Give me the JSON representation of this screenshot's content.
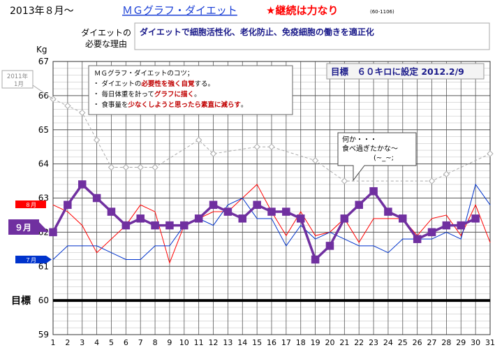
{
  "header": {
    "date_title": "2013年８月〜",
    "app_title": "ＭＧグラフ・ダイエット",
    "motto": "★継続は力なり",
    "code": "(60-1106)"
  },
  "reason": {
    "label_line1": "ダイエットの",
    "label_line2": "必要な理由",
    "text": "ダイエットで細胞活性化、老化防止、免疫細胞の働きを適正化"
  },
  "tips": {
    "title": "ＭＧグラフ・ダイエットのコツ；",
    "items": [
      {
        "pre": "・ ダイエットの",
        "em": "必要性を強く自覚",
        "post": "する。"
      },
      {
        "pre": "・ 毎日体重を計って",
        "em": "グラフに描く",
        "post": "。"
      },
      {
        "pre": "・ 食事量を",
        "em": "少なくしようと思ったら素直に減らす",
        "post": "。"
      }
    ]
  },
  "goal_banner": "目標　６０キロに設定 2012.2/9",
  "callout": {
    "line1": "何か・・・",
    "line2": "食べ過ぎたかな〜",
    "line3": "(~_~;"
  },
  "colors": {
    "sep_2013": "#7030a0",
    "aug_2012": "#ff0000",
    "jul_2013": "#0033cc",
    "nov_2011": "#aaaaaa",
    "goal": "#000000"
  },
  "chart_data": {
    "type": "line",
    "ylabel": "Kg",
    "ylim": [
      59,
      67
    ],
    "yticks": [
      59,
      60,
      61,
      62,
      63,
      64,
      65,
      66,
      67
    ],
    "x": [
      1,
      2,
      3,
      4,
      5,
      6,
      7,
      8,
      9,
      10,
      11,
      12,
      13,
      14,
      15,
      16,
      17,
      18,
      19,
      20,
      21,
      22,
      23,
      24,
      25,
      26,
      27,
      28,
      29,
      30,
      31
    ],
    "grid": true,
    "goal_label": "目標",
    "goal_value": 60,
    "series": [
      {
        "key": "nov_2011",
        "name": "2011年\n1月",
        "label_line1": "2011年",
        "label_line2": "1月",
        "values": [
          65.9,
          65.7,
          65.5,
          64.7,
          63.9,
          63.9,
          63.9,
          63.9,
          null,
          null,
          64.7,
          64.3,
          null,
          null,
          64.5,
          64.5,
          null,
          null,
          64.1,
          null,
          63.5,
          null,
          null,
          null,
          null,
          null,
          63.5,
          63.7,
          null,
          null,
          64.3
        ]
      },
      {
        "key": "aug_2012",
        "name": "８月",
        "values": [
          62.8,
          62.6,
          62.2,
          61.4,
          61.8,
          62.2,
          62.8,
          62.6,
          61.1,
          62.2,
          62.4,
          62.6,
          62.6,
          63.0,
          63.4,
          62.6,
          61.9,
          62.6,
          61.9,
          62.0,
          62.4,
          61.7,
          62.4,
          62.4,
          62.4,
          61.9,
          62.4,
          62.5,
          61.9,
          62.8,
          61.7
        ]
      },
      {
        "key": "jul_2013",
        "name": "７月",
        "values": [
          61.2,
          61.6,
          61.6,
          61.6,
          61.4,
          61.2,
          61.2,
          61.6,
          61.6,
          62.2,
          62.4,
          62.2,
          62.8,
          63.0,
          62.4,
          62.4,
          61.6,
          62.2,
          61.8,
          62.0,
          61.8,
          61.6,
          61.6,
          61.4,
          61.8,
          61.8,
          61.8,
          62.0,
          61.8,
          63.4,
          62.8
        ]
      },
      {
        "key": "sep_2013",
        "name": "９月",
        "values": [
          62.0,
          62.8,
          63.4,
          63.0,
          62.6,
          62.2,
          62.4,
          62.2,
          62.2,
          62.2,
          62.4,
          62.8,
          62.6,
          62.4,
          62.8,
          62.6,
          62.6,
          62.4,
          61.2,
          61.6,
          62.4,
          62.8,
          63.2,
          62.6,
          62.4,
          61.8,
          62.0,
          62.2,
          62.2,
          62.4,
          null
        ]
      }
    ]
  }
}
